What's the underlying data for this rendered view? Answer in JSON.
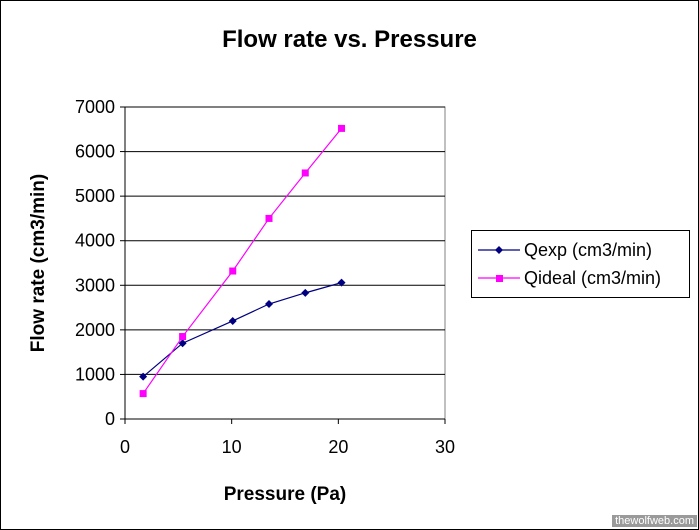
{
  "chart_data": {
    "type": "line",
    "title": "Flow rate vs. Pressure",
    "xlabel": "Pressure (Pa)",
    "ylabel": "Flow rate (cm3/min)",
    "xlim": [
      0,
      30
    ],
    "ylim": [
      0,
      7000
    ],
    "xticks": [
      0,
      10,
      20,
      30
    ],
    "yticks": [
      0,
      1000,
      2000,
      3000,
      4000,
      5000,
      6000,
      7000
    ],
    "grid": "horizontal",
    "legend_position": "right",
    "series": [
      {
        "name": "Qexp (cm3/min)",
        "color": "#000080",
        "marker": "diamond",
        "x": [
          1.7,
          5.4,
          10.1,
          13.5,
          16.9,
          20.3
        ],
        "y": [
          950,
          1700,
          2200,
          2580,
          2830,
          3060
        ]
      },
      {
        "name": "Qideal (cm3/min)",
        "color": "#ff00ff",
        "marker": "square",
        "x": [
          1.7,
          5.4,
          10.1,
          13.5,
          16.9,
          20.3
        ],
        "y": [
          570,
          1850,
          3320,
          4500,
          5520,
          6520
        ]
      }
    ]
  },
  "watermark": "thewolfweb.com"
}
